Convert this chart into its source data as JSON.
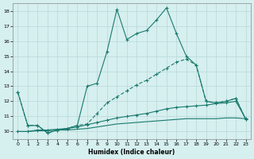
{
  "xlabel": "Humidex (Indice chaleur)",
  "background_color": "#d6efef",
  "grid_color": "#b8d8d8",
  "line_color": "#1a7a6e",
  "xlim": [
    -0.5,
    23.5
  ],
  "ylim": [
    9.5,
    18.5
  ],
  "yticks": [
    10,
    11,
    12,
    13,
    14,
    15,
    16,
    17,
    18
  ],
  "xticks": [
    0,
    1,
    2,
    3,
    4,
    5,
    6,
    7,
    8,
    9,
    10,
    11,
    12,
    13,
    14,
    15,
    16,
    17,
    18,
    19,
    20,
    21,
    22,
    23
  ],
  "series1": [
    12.6,
    10.4,
    10.4,
    9.9,
    10.1,
    10.2,
    10.4,
    13.0,
    13.2,
    15.3,
    18.1,
    16.1,
    16.5,
    16.7,
    17.4,
    18.2,
    16.5,
    15.0,
    14.4,
    12.0,
    11.9,
    12.0,
    12.2,
    10.8
  ],
  "series2": [
    12.6,
    10.4,
    10.4,
    9.9,
    10.1,
    10.2,
    10.4,
    10.5,
    11.2,
    11.9,
    12.3,
    12.7,
    13.1,
    13.4,
    13.8,
    14.2,
    14.6,
    14.8,
    14.4,
    12.0,
    11.9,
    12.0,
    12.2,
    10.8
  ],
  "series3": [
    10.0,
    10.0,
    10.1,
    10.1,
    10.15,
    10.2,
    10.3,
    10.45,
    10.6,
    10.75,
    10.9,
    11.0,
    11.1,
    11.2,
    11.35,
    11.5,
    11.6,
    11.65,
    11.7,
    11.75,
    11.85,
    11.9,
    12.0,
    10.85
  ],
  "series4": [
    10.0,
    10.0,
    10.05,
    10.05,
    10.1,
    10.1,
    10.15,
    10.2,
    10.3,
    10.4,
    10.5,
    10.55,
    10.6,
    10.65,
    10.7,
    10.75,
    10.8,
    10.85,
    10.85,
    10.85,
    10.85,
    10.9,
    10.9,
    10.85
  ]
}
